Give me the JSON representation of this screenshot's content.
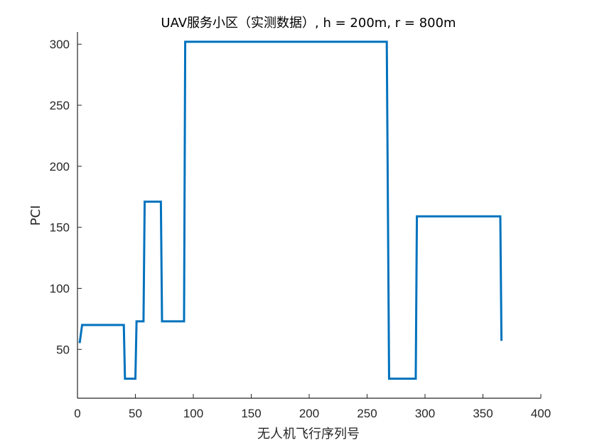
{
  "chart_data": {
    "type": "line",
    "title": "UAV服务小区（实测数据）, h = 200m, r = 800m",
    "xlabel": "无人机飞行序列号",
    "ylabel": "PCI",
    "xlim": [
      0,
      400
    ],
    "ylim": [
      10,
      310
    ],
    "xticks": [
      0,
      50,
      100,
      150,
      200,
      250,
      300,
      350,
      400
    ],
    "yticks": [
      50,
      100,
      150,
      200,
      250,
      300
    ],
    "grid": false,
    "color": "#0072BD",
    "series": [
      {
        "x": [
          1,
          2,
          4,
          40,
          41,
          50,
          51,
          57,
          58,
          72,
          73,
          92,
          93,
          267,
          269,
          292,
          293,
          365,
          366
        ],
        "y": [
          56,
          56,
          70,
          70,
          26,
          26,
          73,
          73,
          171,
          171,
          73,
          73,
          302,
          302,
          26,
          26,
          159,
          159,
          57
        ]
      }
    ]
  }
}
